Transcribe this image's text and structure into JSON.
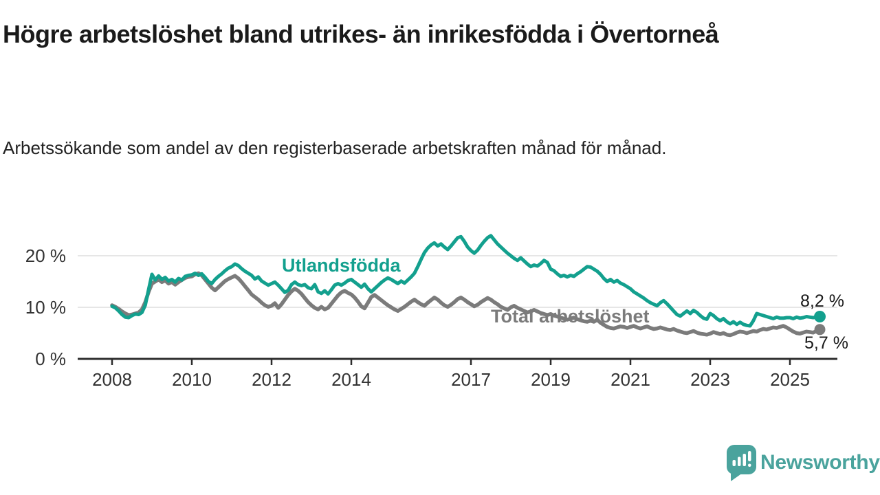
{
  "header": {
    "title": "Högre arbetslöshet bland utrikes- än inrikesfödda i Övertorneå",
    "subtitle": "Arbetssökande som andel av den registerbaserade arbetskraften månad för månad."
  },
  "chart_data": {
    "type": "line",
    "unit": "%",
    "grid": "horizontal",
    "ylim": [
      0,
      25
    ],
    "y_ticks": [
      {
        "value": 0,
        "label": "0 %"
      },
      {
        "value": 10,
        "label": "10 %"
      },
      {
        "value": 20,
        "label": "20 %"
      }
    ],
    "x_ticks": [
      2008,
      2010,
      2012,
      2014,
      2017,
      2019,
      2021,
      2023,
      2025
    ],
    "x_start_year": 2008,
    "months_per_point": 1,
    "colors": {
      "axis": "#2d2d2d",
      "grid": "#dedede"
    },
    "series": [
      {
        "name": "Total arbetslöshet",
        "color": "#7b7b7b",
        "end_label": "5,7 %",
        "values": [
          10.4,
          10.1,
          9.7,
          9.2,
          8.8,
          8.5,
          8.6,
          8.8,
          9.0,
          9.6,
          11.0,
          13.0,
          14.6,
          15.0,
          15.4,
          14.9,
          15.2,
          14.6,
          14.9,
          14.4,
          14.9,
          15.3,
          15.7,
          15.9,
          16.0,
          16.4,
          16.6,
          16.2,
          15.4,
          14.6,
          13.8,
          13.3,
          13.9,
          14.5,
          15.1,
          15.5,
          15.8,
          16.1,
          15.6,
          14.9,
          14.1,
          13.3,
          12.5,
          12.0,
          11.5,
          10.9,
          10.4,
          10.1,
          10.3,
          10.8,
          9.9,
          10.6,
          11.5,
          12.4,
          13.1,
          13.6,
          13.2,
          12.6,
          11.8,
          11.0,
          10.4,
          9.9,
          9.6,
          10.1,
          9.6,
          9.9,
          10.7,
          11.5,
          12.3,
          12.9,
          13.2,
          12.8,
          12.5,
          11.9,
          11.1,
          10.2,
          9.8,
          10.9,
          12.0,
          12.4,
          11.9,
          11.4,
          10.9,
          10.4,
          10.0,
          9.6,
          9.3,
          9.7,
          10.1,
          10.6,
          11.1,
          11.5,
          11.0,
          10.6,
          10.3,
          10.9,
          11.4,
          11.9,
          11.5,
          10.9,
          10.4,
          10.1,
          10.5,
          11.0,
          11.6,
          11.9,
          11.5,
          11.0,
          10.6,
          10.2,
          10.5,
          11.0,
          11.4,
          11.8,
          11.5,
          11.0,
          10.6,
          10.1,
          9.8,
          9.5,
          10.0,
          10.3,
          9.9,
          9.6,
          9.3,
          9.0,
          9.2,
          9.5,
          9.2,
          8.9,
          8.7,
          8.5,
          8.7,
          8.4,
          8.2,
          8.0,
          7.8,
          7.6,
          7.8,
          8.0,
          7.7,
          7.5,
          7.3,
          7.2,
          7.4,
          7.2,
          7.6,
          7.0,
          6.6,
          6.2,
          6.0,
          5.9,
          6.1,
          6.3,
          6.2,
          6.0,
          6.2,
          6.4,
          6.1,
          5.9,
          6.1,
          6.3,
          6.0,
          5.8,
          5.9,
          6.1,
          5.9,
          5.7,
          5.6,
          5.8,
          5.5,
          5.3,
          5.1,
          5.0,
          5.2,
          5.4,
          5.1,
          4.9,
          4.8,
          4.7,
          4.9,
          5.2,
          5.0,
          4.8,
          5.0,
          4.7,
          4.6,
          4.8,
          5.1,
          5.3,
          5.2,
          5.0,
          5.2,
          5.4,
          5.3,
          5.6,
          5.8,
          5.7,
          5.9,
          6.1,
          6.0,
          6.2,
          6.4,
          6.1,
          5.7,
          5.3,
          5.0,
          4.9,
          5.1,
          5.3,
          5.2,
          5.1,
          5.4,
          5.7
        ]
      },
      {
        "name": "Utlandsfödda",
        "color": "#13a08e",
        "end_label": "8,2 %",
        "values": [
          10.2,
          9.9,
          9.3,
          8.6,
          8.1,
          8.0,
          8.4,
          8.7,
          8.6,
          9.0,
          10.4,
          13.5,
          16.4,
          15.3,
          16.1,
          15.4,
          15.8,
          15.1,
          15.4,
          14.9,
          15.6,
          15.3,
          16.0,
          16.2,
          16.3,
          16.6,
          16.2,
          16.5,
          15.8,
          15.0,
          14.6,
          15.4,
          16.0,
          16.5,
          17.1,
          17.6,
          17.9,
          18.4,
          18.1,
          17.5,
          17.0,
          16.6,
          16.2,
          15.5,
          15.9,
          15.1,
          14.7,
          14.3,
          14.6,
          14.9,
          14.3,
          13.6,
          12.9,
          13.3,
          14.4,
          14.9,
          14.4,
          14.2,
          14.4,
          13.8,
          13.6,
          14.4,
          13.0,
          12.7,
          13.2,
          12.6,
          13.4,
          14.3,
          14.6,
          14.3,
          14.7,
          15.2,
          15.4,
          14.9,
          14.4,
          13.9,
          14.5,
          13.6,
          13.0,
          13.6,
          14.2,
          14.8,
          15.3,
          15.7,
          15.4,
          15.0,
          14.6,
          15.1,
          14.7,
          15.3,
          15.9,
          16.6,
          17.9,
          19.3,
          20.6,
          21.5,
          22.1,
          22.5,
          21.9,
          22.3,
          21.7,
          21.2,
          21.9,
          22.7,
          23.5,
          23.7,
          22.8,
          21.7,
          21.0,
          20.5,
          21.1,
          22.0,
          22.8,
          23.5,
          23.9,
          23.1,
          22.3,
          21.7,
          21.1,
          20.5,
          20.0,
          19.5,
          19.1,
          19.6,
          19.0,
          18.4,
          17.9,
          18.2,
          18.0,
          18.5,
          19.1,
          18.7,
          17.4,
          17.1,
          16.5,
          16.0,
          16.2,
          15.9,
          16.2,
          16.0,
          16.5,
          16.9,
          17.4,
          17.9,
          17.8,
          17.4,
          17.0,
          16.4,
          15.6,
          15.0,
          15.4,
          14.9,
          15.2,
          14.7,
          14.4,
          14.0,
          13.6,
          13.0,
          12.6,
          12.2,
          11.8,
          11.3,
          10.9,
          10.6,
          10.3,
          10.9,
          11.3,
          10.7,
          10.0,
          9.3,
          8.6,
          8.3,
          8.8,
          9.3,
          8.8,
          9.4,
          9.0,
          8.4,
          7.9,
          7.7,
          8.8,
          8.4,
          7.8,
          7.4,
          7.8,
          7.2,
          6.8,
          7.2,
          6.7,
          7.1,
          6.7,
          6.5,
          6.4,
          7.4,
          8.8,
          8.6,
          8.4,
          8.2,
          8.0,
          7.8,
          8.1,
          7.9,
          7.9,
          8.0,
          8.0,
          7.8,
          8.1,
          7.9,
          8.0,
          8.2,
          8.1,
          8.0,
          8.1,
          8.2
        ]
      }
    ]
  },
  "footer": {
    "brand": "Newsworthy"
  }
}
